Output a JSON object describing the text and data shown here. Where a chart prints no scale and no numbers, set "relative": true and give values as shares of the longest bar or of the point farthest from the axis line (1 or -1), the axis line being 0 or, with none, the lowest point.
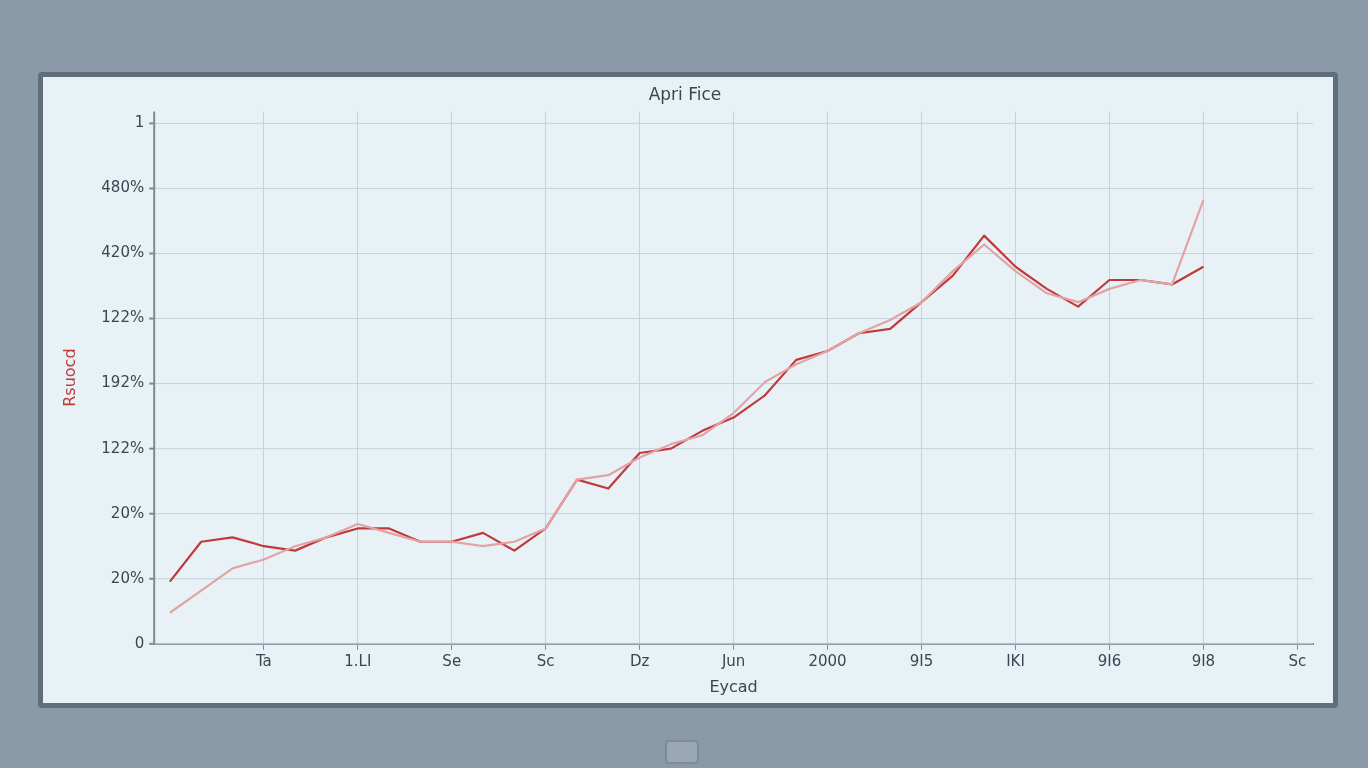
{
  "chart_data": {
    "type": "line",
    "title": "Apri Fice",
    "xlabel": "Eycad",
    "ylabel": "Rsuocd",
    "relative": true,
    "annotations": [
      "1",
      "480%",
      "420%",
      "122%",
      "192%",
      "122%",
      "20%",
      "20%",
      "0"
    ],
    "categories": [
      null,
      null,
      null,
      "Ta",
      null,
      null,
      "1.LI",
      null,
      null,
      "Se",
      null,
      null,
      "Sc",
      null,
      null,
      "Dz",
      null,
      null,
      "Jun",
      null,
      null,
      "2000",
      null,
      null,
      "9I5",
      null,
      null,
      "IKI",
      null,
      null,
      "9I6",
      null,
      null,
      "9I8",
      null,
      null,
      "Sc"
    ],
    "grid": true,
    "marker": "none",
    "line_style": "solid",
    "legend": false,
    "series": [
      {
        "color": "#c0393b",
        "values": [
          0.14,
          0.23,
          0.24,
          0.22,
          0.21,
          0.24,
          0.26,
          0.26,
          0.23,
          0.23,
          0.25,
          0.21,
          0.26,
          0.37,
          0.35,
          0.43,
          0.44,
          0.48,
          0.51,
          0.56,
          0.64,
          0.66,
          0.7,
          0.71,
          0.77,
          0.83,
          0.92,
          0.85,
          0.8,
          0.76,
          0.82,
          0.82,
          0.81,
          0.85,
          null,
          null,
          null
        ]
      },
      {
        "color": "#e3a3a5",
        "values": [
          0.07,
          0.12,
          0.17,
          0.19,
          0.22,
          0.24,
          0.27,
          0.25,
          0.23,
          0.23,
          0.22,
          0.23,
          0.26,
          0.37,
          0.38,
          0.42,
          0.45,
          0.47,
          0.52,
          0.59,
          0.63,
          0.66,
          0.7,
          0.73,
          0.77,
          0.84,
          0.9,
          0.84,
          0.79,
          0.77,
          0.8,
          0.82,
          0.81,
          1,
          null,
          null,
          null
        ]
      }
    ]
  }
}
